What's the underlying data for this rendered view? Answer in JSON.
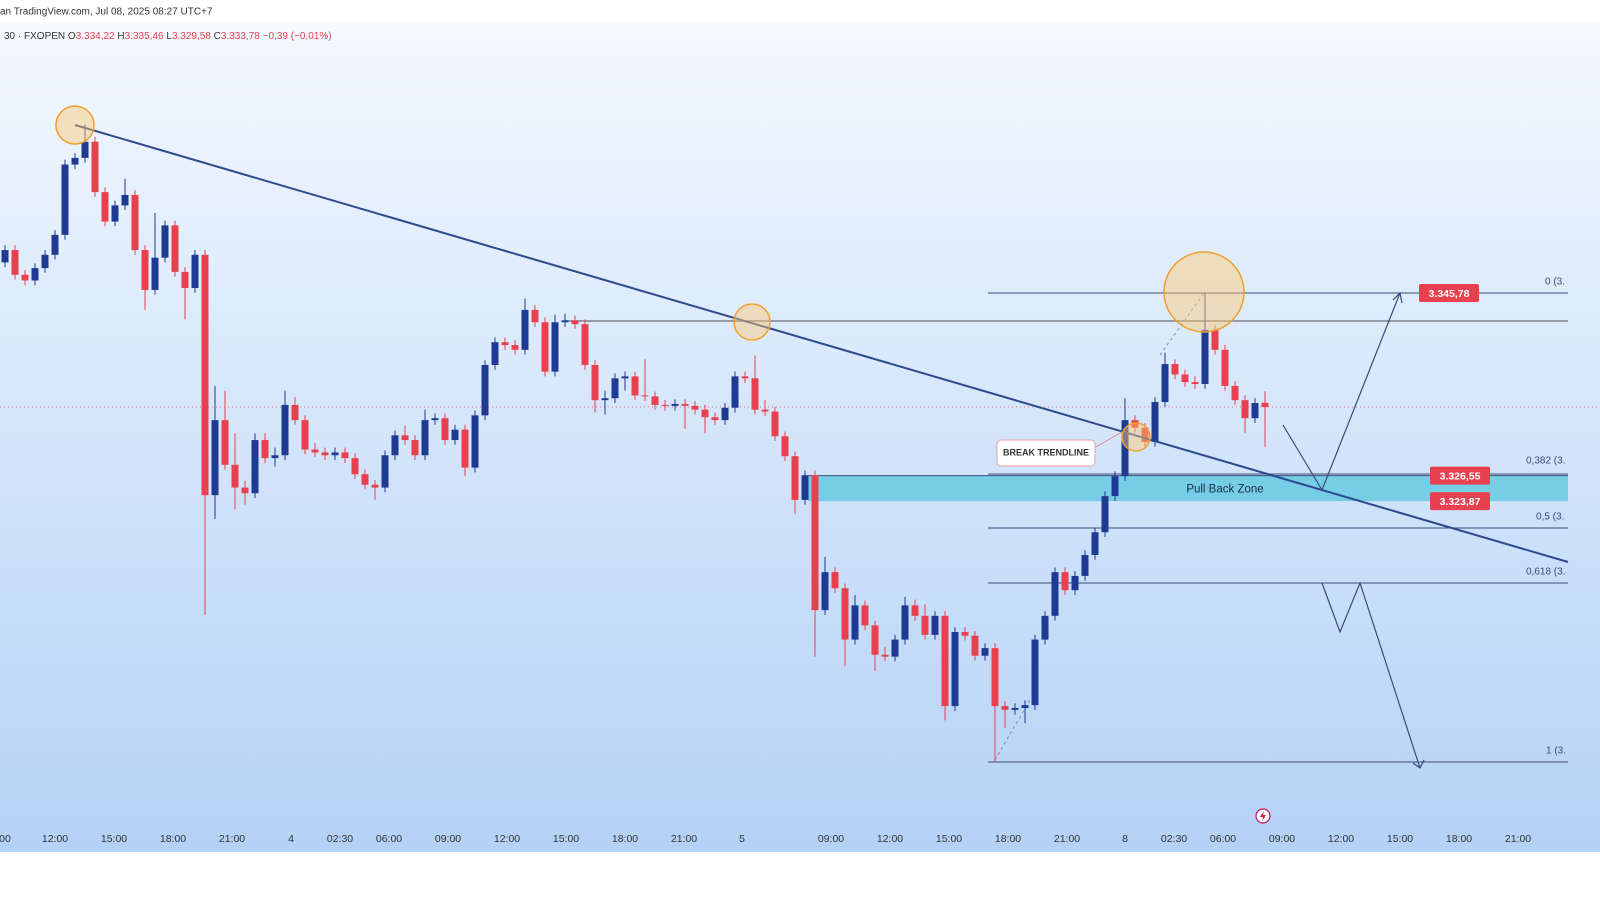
{
  "header": {
    "source": "an TradingView.com, Jul 08, 2025 08:27 UTC+7",
    "symbol": "30 · FXOPEN",
    "quote": [
      {
        "k": "O",
        "v": "3.334,22"
      },
      {
        "k": "H",
        "v": "3.335,46"
      },
      {
        "k": "L",
        "v": "3.329,58"
      },
      {
        "k": "C",
        "v": "3.333,78"
      }
    ],
    "change": "−0,39 (−0,01%)"
  },
  "chart_data": {
    "type": "candlestick",
    "up_color": "#1f3a93",
    "down_color": "#e8404f",
    "ylim": [
      3287.15,
      3376.62
    ],
    "x_labels": [
      "00",
      "12:00",
      "15:00",
      "18:00",
      "21:00",
      "4",
      "02:30",
      "06:00",
      "09:00",
      "12:00",
      "15:00",
      "18:00",
      "21:00",
      "5",
      "09:00",
      "12:00",
      "15:00",
      "18:00",
      "21:00",
      "8",
      "02:30",
      "06:00",
      "09:00",
      "12:00",
      "15:00",
      "18:00",
      "21:00"
    ],
    "ohlc": [
      [
        3349.0,
        3350.8,
        3348.5,
        3350.3
      ],
      [
        3350.3,
        3350.8,
        3347.2,
        3347.7
      ],
      [
        3347.7,
        3348.2,
        3346.6,
        3347.1
      ],
      [
        3347.1,
        3348.9,
        3346.6,
        3348.4
      ],
      [
        3348.4,
        3350.3,
        3347.9,
        3349.8
      ],
      [
        3349.8,
        3352.4,
        3349.3,
        3351.9
      ],
      [
        3351.9,
        3359.8,
        3351.4,
        3359.3
      ],
      [
        3359.3,
        3360.5,
        3358.8,
        3360.0
      ],
      [
        3360.0,
        3363.5,
        3359.5,
        3361.7
      ],
      [
        3361.7,
        3362.2,
        3355.9,
        3356.4
      ],
      [
        3356.4,
        3356.9,
        3352.8,
        3353.3
      ],
      [
        3353.3,
        3355.5,
        3352.8,
        3355.0
      ],
      [
        3355.0,
        3357.8,
        3354.5,
        3356.1
      ],
      [
        3356.1,
        3356.6,
        3349.8,
        3350.3
      ],
      [
        3350.3,
        3350.8,
        3344.0,
        3346.1
      ],
      [
        3346.1,
        3354.2,
        3345.6,
        3349.5
      ],
      [
        3349.5,
        3353.4,
        3349.0,
        3352.9
      ],
      [
        3352.9,
        3353.4,
        3347.5,
        3348.0
      ],
      [
        3348.0,
        3348.5,
        3343.0,
        3346.3
      ],
      [
        3346.3,
        3350.3,
        3345.8,
        3349.8
      ],
      [
        3349.8,
        3350.3,
        3311.9,
        3324.5
      ],
      [
        3324.5,
        3336.0,
        3322.0,
        3332.4
      ],
      [
        3332.4,
        3335.5,
        3327.2,
        3327.7
      ],
      [
        3327.7,
        3331.0,
        3323.0,
        3325.3
      ],
      [
        3325.3,
        3326.0,
        3323.5,
        3324.7
      ],
      [
        3324.7,
        3331.0,
        3324.2,
        3330.3
      ],
      [
        3330.3,
        3331.0,
        3327.9,
        3328.4
      ],
      [
        3328.4,
        3329.5,
        3327.5,
        3328.7
      ],
      [
        3328.7,
        3335.5,
        3328.2,
        3334.0
      ],
      [
        3334.0,
        3334.8,
        3331.9,
        3332.4
      ],
      [
        3332.4,
        3332.9,
        3328.8,
        3329.3
      ],
      [
        3329.3,
        3330.0,
        3328.5,
        3329.0
      ],
      [
        3329.0,
        3329.5,
        3328.2,
        3328.7
      ],
      [
        3328.7,
        3329.5,
        3328.2,
        3329.0
      ],
      [
        3329.0,
        3329.5,
        3327.9,
        3328.4
      ],
      [
        3328.4,
        3328.9,
        3326.2,
        3326.7
      ],
      [
        3326.7,
        3327.2,
        3325.1,
        3325.6
      ],
      [
        3325.6,
        3326.1,
        3324.0,
        3325.3
      ],
      [
        3325.3,
        3329.2,
        3324.8,
        3328.7
      ],
      [
        3328.7,
        3331.3,
        3328.2,
        3330.8
      ],
      [
        3330.8,
        3331.8,
        3329.8,
        3330.3
      ],
      [
        3330.3,
        3330.8,
        3328.2,
        3328.7
      ],
      [
        3328.7,
        3333.5,
        3328.2,
        3332.4
      ],
      [
        3332.4,
        3333.1,
        3331.9,
        3332.6
      ],
      [
        3332.6,
        3333.1,
        3329.8,
        3330.3
      ],
      [
        3330.3,
        3331.9,
        3329.8,
        3331.4
      ],
      [
        3331.4,
        3331.9,
        3326.5,
        3327.4
      ],
      [
        3327.4,
        3333.4,
        3326.9,
        3332.9
      ],
      [
        3332.9,
        3338.7,
        3332.4,
        3338.2
      ],
      [
        3338.2,
        3341.1,
        3337.7,
        3340.6
      ],
      [
        3340.6,
        3341.1,
        3339.8,
        3340.3
      ],
      [
        3340.3,
        3340.8,
        3339.3,
        3339.8
      ],
      [
        3339.8,
        3345.2,
        3339.3,
        3344.0
      ],
      [
        3344.0,
        3344.5,
        3342.2,
        3342.7
      ],
      [
        3342.7,
        3343.2,
        3337.0,
        3337.5
      ],
      [
        3337.5,
        3343.5,
        3337.0,
        3342.7
      ],
      [
        3342.7,
        3343.6,
        3342.2,
        3342.9
      ],
      [
        3342.9,
        3343.4,
        3342.0,
        3342.5
      ],
      [
        3342.5,
        3343.0,
        3337.7,
        3338.2
      ],
      [
        3338.2,
        3338.7,
        3333.2,
        3334.5
      ],
      [
        3334.5,
        3335.5,
        3333.0,
        3334.7
      ],
      [
        3334.7,
        3337.3,
        3334.2,
        3336.8
      ],
      [
        3336.8,
        3337.5,
        3335.5,
        3337.0
      ],
      [
        3337.0,
        3337.5,
        3334.5,
        3335.0
      ],
      [
        3335.0,
        3338.8,
        3334.4,
        3334.9
      ],
      [
        3334.9,
        3335.4,
        3333.5,
        3334.0
      ],
      [
        3334.0,
        3334.5,
        3333.4,
        3333.9
      ],
      [
        3333.9,
        3334.6,
        3333.4,
        3334.1
      ],
      [
        3334.1,
        3334.6,
        3331.5,
        3333.9
      ],
      [
        3333.9,
        3334.4,
        3333.0,
        3333.5
      ],
      [
        3333.5,
        3334.0,
        3331.0,
        3332.7
      ],
      [
        3332.7,
        3333.2,
        3331.9,
        3332.4
      ],
      [
        3332.4,
        3334.2,
        3331.9,
        3333.7
      ],
      [
        3333.7,
        3337.5,
        3333.2,
        3337.0
      ],
      [
        3337.0,
        3337.5,
        3336.3,
        3336.8
      ],
      [
        3336.8,
        3339.2,
        3333.0,
        3333.5
      ],
      [
        3333.5,
        3334.5,
        3332.8,
        3333.3
      ],
      [
        3333.3,
        3333.8,
        3330.2,
        3330.7
      ],
      [
        3330.7,
        3331.2,
        3328.1,
        3328.6
      ],
      [
        3328.6,
        3329.1,
        3322.5,
        3324.0
      ],
      [
        3324.0,
        3327.1,
        3323.5,
        3326.6
      ],
      [
        3326.6,
        3327.1,
        3307.5,
        3312.4
      ],
      [
        3312.4,
        3318.0,
        3311.9,
        3316.4
      ],
      [
        3316.4,
        3316.9,
        3314.2,
        3314.7
      ],
      [
        3314.7,
        3315.2,
        3306.5,
        3309.3
      ],
      [
        3309.3,
        3314.0,
        3308.8,
        3312.9
      ],
      [
        3312.9,
        3313.4,
        3310.3,
        3310.8
      ],
      [
        3310.8,
        3311.3,
        3306.0,
        3307.7
      ],
      [
        3307.7,
        3308.5,
        3307.0,
        3307.5
      ],
      [
        3307.5,
        3309.8,
        3307.0,
        3309.3
      ],
      [
        3309.3,
        3313.8,
        3308.8,
        3312.9
      ],
      [
        3312.9,
        3313.5,
        3311.3,
        3311.8
      ],
      [
        3311.8,
        3313.0,
        3309.3,
        3309.8
      ],
      [
        3309.8,
        3312.3,
        3309.3,
        3311.8
      ],
      [
        3311.8,
        3312.3,
        3300.8,
        3302.3
      ],
      [
        3302.3,
        3310.6,
        3301.8,
        3310.1
      ],
      [
        3310.1,
        3310.6,
        3309.2,
        3309.7
      ],
      [
        3309.7,
        3310.2,
        3307.1,
        3307.6
      ],
      [
        3307.6,
        3308.9,
        3307.1,
        3308.4
      ],
      [
        3308.4,
        3308.9,
        3296.4,
        3302.3
      ],
      [
        3302.3,
        3302.8,
        3300.0,
        3301.9
      ],
      [
        3301.9,
        3302.6,
        3301.4,
        3302.1
      ],
      [
        3302.1,
        3302.9,
        3300.5,
        3302.4
      ],
      [
        3302.4,
        3309.8,
        3301.9,
        3309.3
      ],
      [
        3309.3,
        3312.3,
        3308.8,
        3311.8
      ],
      [
        3311.8,
        3316.9,
        3311.3,
        3316.4
      ],
      [
        3316.4,
        3316.9,
        3314.0,
        3314.5
      ],
      [
        3314.5,
        3316.5,
        3314.0,
        3316.0
      ],
      [
        3316.0,
        3318.7,
        3315.5,
        3318.2
      ],
      [
        3318.2,
        3321.1,
        3317.7,
        3320.6
      ],
      [
        3320.6,
        3324.9,
        3320.1,
        3324.4
      ],
      [
        3324.4,
        3327.0,
        3323.9,
        3326.5
      ],
      [
        3326.5,
        3334.7,
        3326.0,
        3332.4
      ],
      [
        3332.4,
        3332.9,
        3331.1,
        3331.6
      ],
      [
        3331.6,
        3332.1,
        3329.6,
        3330.1
      ],
      [
        3330.1,
        3334.8,
        3329.6,
        3334.3
      ],
      [
        3334.3,
        3339.5,
        3333.8,
        3338.3
      ],
      [
        3338.3,
        3338.8,
        3336.7,
        3337.2
      ],
      [
        3337.2,
        3337.7,
        3335.9,
        3336.4
      ],
      [
        3336.4,
        3337.0,
        3335.7,
        3336.2
      ],
      [
        3336.2,
        3345.78,
        3335.7,
        3341.9
      ],
      [
        3341.9,
        3342.4,
        3339.3,
        3339.8
      ],
      [
        3339.8,
        3340.3,
        3335.5,
        3336.0
      ],
      [
        3336.0,
        3336.5,
        3334.0,
        3334.5
      ],
      [
        3334.5,
        3335.0,
        3331.0,
        3332.6
      ],
      [
        3332.6,
        3334.7,
        3332.1,
        3334.2
      ],
      [
        3334.22,
        3335.46,
        3329.58,
        3333.78
      ]
    ],
    "price_labels": [
      {
        "value": 3345.78,
        "label": "3.345,78"
      },
      {
        "value": 3326.55,
        "label": "3.326,55"
      },
      {
        "value": 3323.87,
        "label": "3.323,87"
      }
    ],
    "fib_labels": [
      "0 (3.",
      "0,382 (3.",
      "0,5 (3.",
      "0,618 (3.",
      "1 (3."
    ],
    "zone_label": "Pull Back Zone",
    "annotation": "BREAK TRENDLINE"
  }
}
